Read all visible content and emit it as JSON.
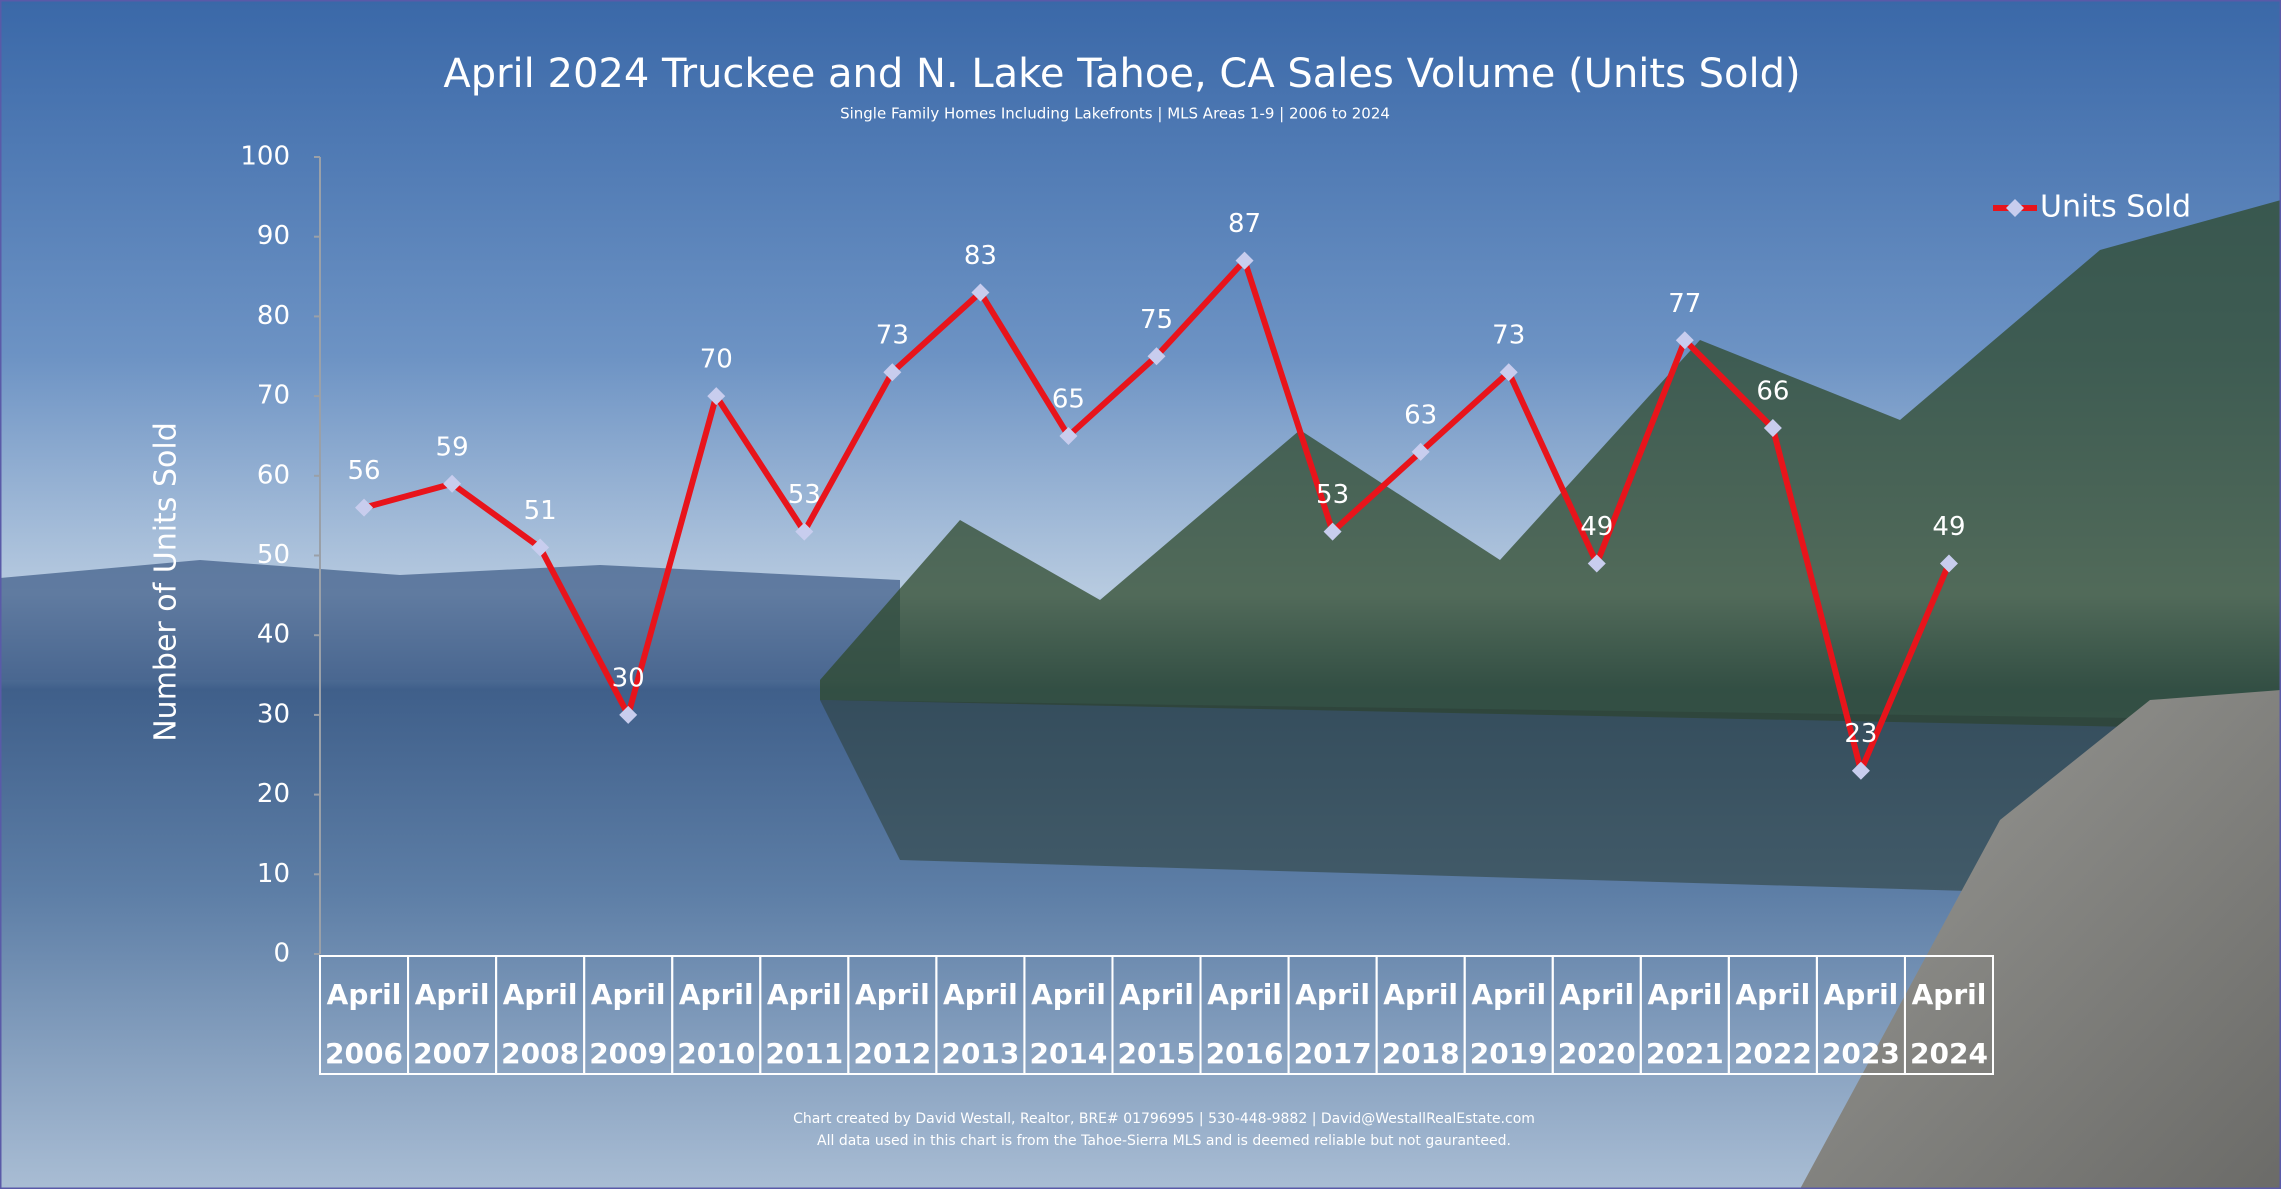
{
  "chart_data": {
    "type": "line",
    "title": "April 2024 Truckee and N. Lake Tahoe, CA Sales Volume (Units Sold)",
    "subtitle": "Single Family Homes Including Lakefronts | MLS Areas 1-9 | 2006 to 2024",
    "y_label": "Number of Units Sold",
    "footer": [
      "Chart created by David Westall, Realtor, BRE# 01796995 | 530-448-9882 | David@WestallRealEstate.com",
      "All data used in this chart is from the Tahoe-Sierra MLS and is deemed reliable but  not gauranteed."
    ],
    "categories": [
      "April 2006",
      "April 2007",
      "April 2008",
      "April 2009",
      "April 2010",
      "April 2011",
      "April 2012",
      "April 2013",
      "April 2014",
      "April 2015",
      "April 2016",
      "April 2017",
      "April 2018",
      "April 2019",
      "April 2020",
      "April 2021",
      "April 2022",
      "April 2023",
      "April 2024"
    ],
    "series": [
      {
        "name": "Units Sold",
        "color": "#e8141b",
        "marker_color": "#c8cdee",
        "values": [
          56,
          59,
          51,
          30,
          70,
          53,
          73,
          83,
          65,
          75,
          87,
          53,
          63,
          73,
          49,
          77,
          66,
          23,
          49
        ]
      }
    ],
    "ylim": [
      0,
      100
    ],
    "yticks": [
      0,
      10,
      20,
      30,
      40,
      50,
      60,
      70,
      80,
      90,
      100
    ],
    "legend": "upper right",
    "data_labels": true
  }
}
